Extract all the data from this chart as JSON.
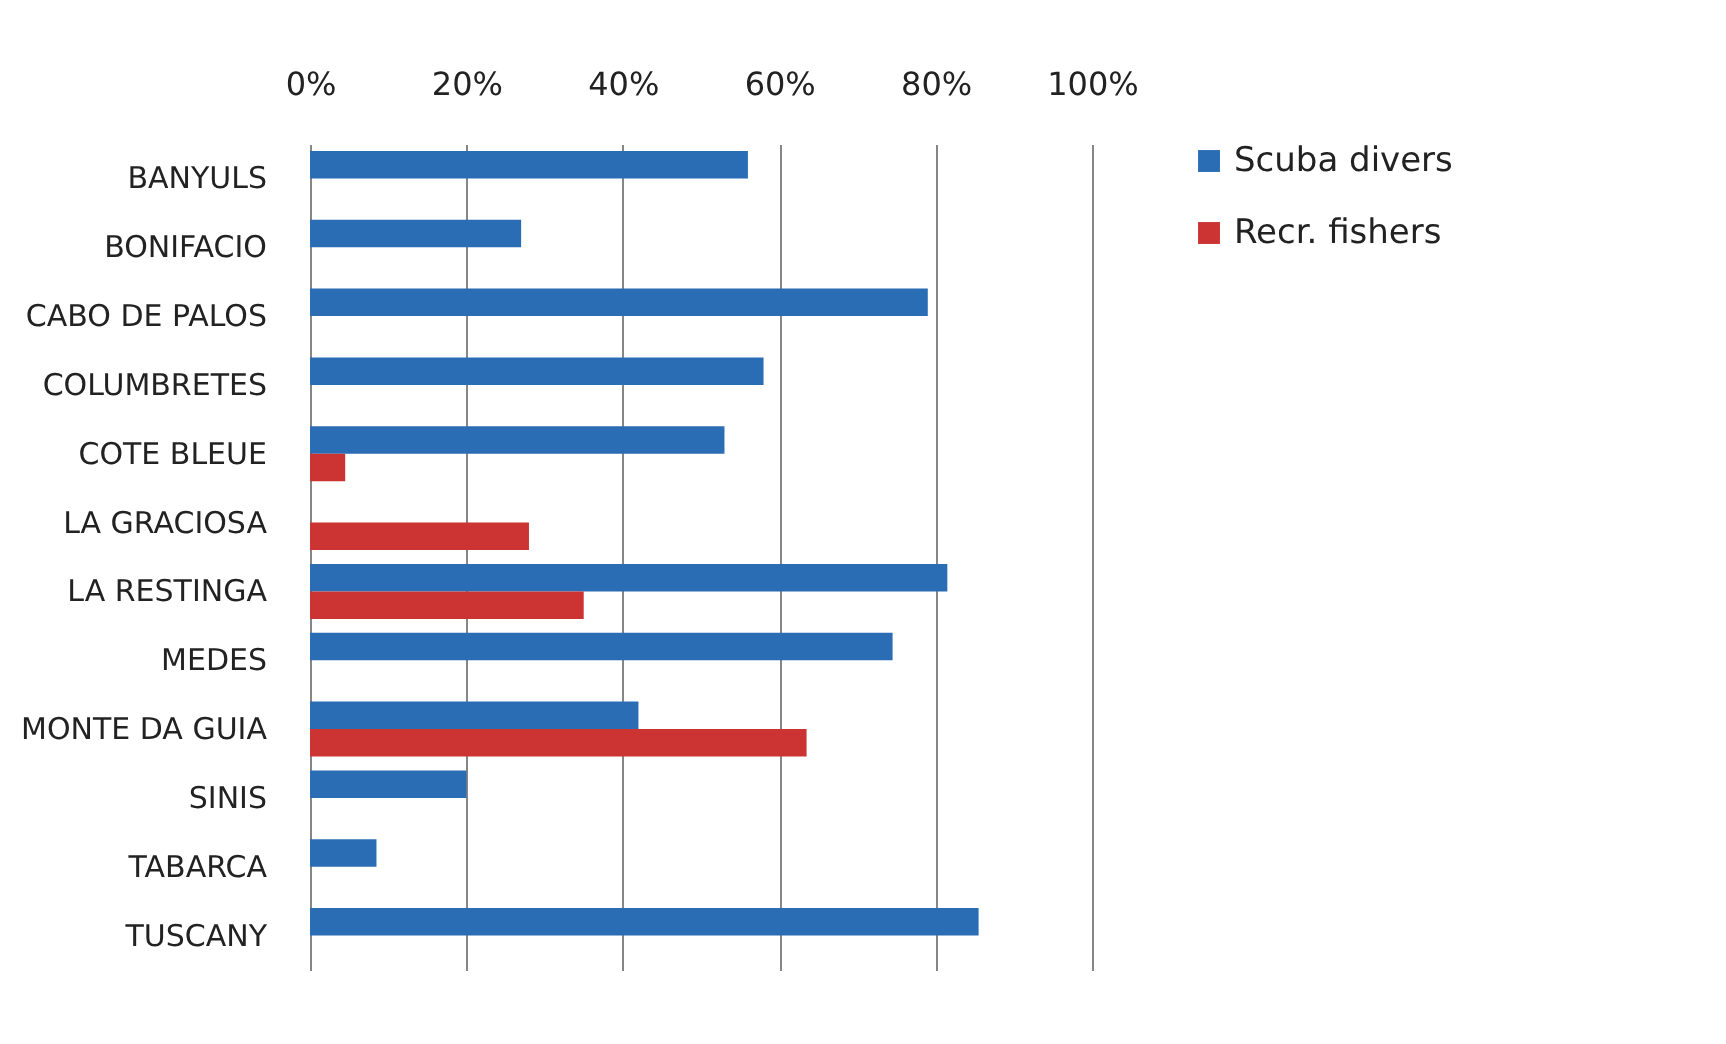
{
  "chart_data": {
    "type": "bar",
    "orientation": "horizontal",
    "categories": [
      "BANYULS",
      "BONIFACIO",
      "CABO DE PALOS",
      "COLUMBRETES",
      "COTE BLEUE",
      "LA GRACIOSA",
      "LA RESTINGA",
      "MEDES",
      "MONTE DA GUIA",
      "SINIS",
      "TABARCA",
      "TUSCANY"
    ],
    "series": [
      {
        "name": "Scuba divers",
        "color": "#2a6db5",
        "values": [
          56,
          27,
          79,
          58,
          53,
          null,
          81.5,
          74.5,
          42,
          20,
          8.5,
          85.5
        ]
      },
      {
        "name": "Recr. fishers",
        "color": "#cc3333",
        "values": [
          null,
          null,
          null,
          null,
          4.5,
          28,
          35,
          null,
          63.5,
          null,
          null,
          null
        ]
      }
    ],
    "xlim": [
      0,
      100
    ],
    "xticks": [
      {
        "value": 0,
        "label": "0%"
      },
      {
        "value": 20,
        "label": "20%"
      },
      {
        "value": 40,
        "label": "40%"
      },
      {
        "value": 60,
        "label": "60%"
      },
      {
        "value": 80,
        "label": "80%"
      },
      {
        "value": 100,
        "label": "100%"
      }
    ],
    "grid": "x",
    "legend": "right"
  }
}
